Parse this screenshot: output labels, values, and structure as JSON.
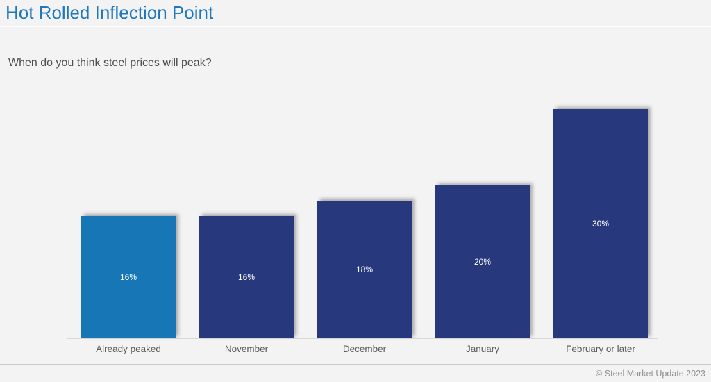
{
  "page": {
    "title": "Hot Rolled Inflection Point",
    "subtitle": "When do you think steel prices will peak?",
    "footer": "© Steel Market Update 2023"
  },
  "colors": {
    "title_text": "#1F78BE",
    "subtitle_text": "#4D4D4D",
    "highlight_bar": "#1776B5",
    "bar": "#27387C",
    "bar_value_text": "#FFFFFF",
    "category_text": "#595959",
    "footer_text": "#8F8F8F",
    "divider": "#C3C3C3",
    "axis_line": "#D8D8D8",
    "background": "#F3F3F3"
  },
  "chart_data": {
    "type": "bar",
    "title": "Hot Rolled Inflection Point",
    "subtitle": "When do you think steel prices will peak?",
    "categories": [
      "Already peaked",
      "November",
      "December",
      "January",
      "February or later"
    ],
    "values": [
      16,
      16,
      18,
      20,
      30
    ],
    "value_labels": [
      "16%",
      "16%",
      "18%",
      "20%",
      "30%"
    ],
    "unit": "%",
    "ylim": [
      0,
      32
    ],
    "grid": false,
    "legend": false,
    "axis_labels_visible": false,
    "bar_colors": [
      "#1776B5",
      "#27387C",
      "#27387C",
      "#27387C",
      "#27387C"
    ],
    "value_label_position": "center-inside"
  }
}
